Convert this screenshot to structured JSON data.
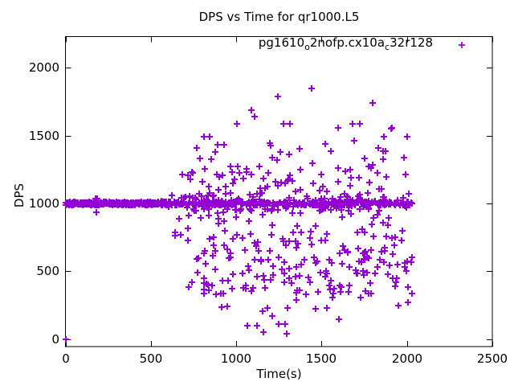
{
  "chart_data": {
    "type": "scatter",
    "title": "DPS vs Time for qr1000.L5",
    "xlabel": "Time(s)",
    "ylabel": "DPS",
    "xlim": [
      0,
      2500
    ],
    "ylim": [
      -55,
      2233
    ],
    "xticks": [
      0,
      500,
      1000,
      1500,
      2000,
      2500
    ],
    "yticks": [
      0,
      500,
      1000,
      1500,
      2000
    ],
    "grid": false,
    "legend_position": "top-right-inside",
    "marker": {
      "shape": "plus",
      "color": "#9400d3",
      "size": 9
    },
    "axis_color": "#000000",
    "background": "#ffffff",
    "series": [
      {
        "name": "pg1610_o2nofp.cx10a_c32r128",
        "label_segments": [
          {
            "t": "pg1610"
          },
          {
            "t": "o",
            "sub": true
          },
          {
            "t": "2nofp.cx10a"
          },
          {
            "t": "c",
            "sub": true
          },
          {
            "t": "32r128"
          }
        ],
        "description": "DPS samples over time: dense horizontal band at DPS ~1000 from t=0 to t~2030s (solid from 0-560s), wide scatter between ~100 and ~1850 DPS for t between ~560s and ~2030s",
        "outlier_points": [
          [
            0,
            0
          ],
          [
            175,
            1035
          ],
          [
            184,
            1035
          ],
          [
            179,
            933
          ],
          [
            786,
            1330
          ],
          [
            810,
            1490
          ],
          [
            845,
            1490
          ],
          [
            852,
            1325
          ],
          [
            876,
            1377
          ],
          [
            890,
            1435
          ],
          [
            930,
            1435
          ],
          [
            965,
            1275
          ],
          [
            1003,
            1585
          ],
          [
            1008,
            1270
          ],
          [
            1059,
            1230
          ],
          [
            1090,
            1690
          ],
          [
            1107,
            1640
          ],
          [
            1210,
            1335
          ],
          [
            1245,
            1790
          ],
          [
            1277,
            1588
          ],
          [
            1317,
            1588
          ],
          [
            1440,
            1845
          ],
          [
            1595,
            1560
          ],
          [
            1683,
            1585
          ],
          [
            1722,
            1585
          ],
          [
            1750,
            1330
          ],
          [
            1798,
            1740
          ],
          [
            1865,
            1490
          ],
          [
            1873,
            1383
          ],
          [
            1905,
            1550
          ],
          [
            1912,
            1560
          ],
          [
            2003,
            1490
          ],
          [
            1066,
            99
          ],
          [
            1122,
            99
          ],
          [
            1160,
            51
          ],
          [
            1183,
            229
          ],
          [
            1211,
            170
          ],
          [
            1249,
            111
          ],
          [
            1287,
            111
          ],
          [
            1296,
            40
          ],
          [
            1601,
            148
          ]
        ],
        "dense_clusters": [
          {
            "n": 420,
            "t": [
              2,
              560
            ],
            "dps": [
              990,
              1010
            ]
          },
          {
            "n": 340,
            "t": [
              560,
              2030
            ],
            "dps": [
              987,
              1013
            ]
          },
          {
            "n": 115,
            "t": [
              555,
              2030
            ],
            "dps": [
              945,
              1055
            ]
          },
          {
            "n": 78,
            "t": [
              600,
              2035
            ],
            "dps": [
              1050,
              1300
            ]
          },
          {
            "n": 14,
            "t": [
              700,
              2035
            ],
            "dps": [
              1300,
              1470
            ]
          },
          {
            "n": 62,
            "t": [
              620,
              2035
            ],
            "dps": [
              700,
              950
            ]
          },
          {
            "n": 148,
            "t": [
              700,
              2035
            ],
            "dps": [
              330,
              700
            ]
          },
          {
            "n": 12,
            "t": [
              820,
              2035
            ],
            "dps": [
              200,
              330
            ]
          }
        ],
        "cluster_seed": 1337
      }
    ]
  }
}
